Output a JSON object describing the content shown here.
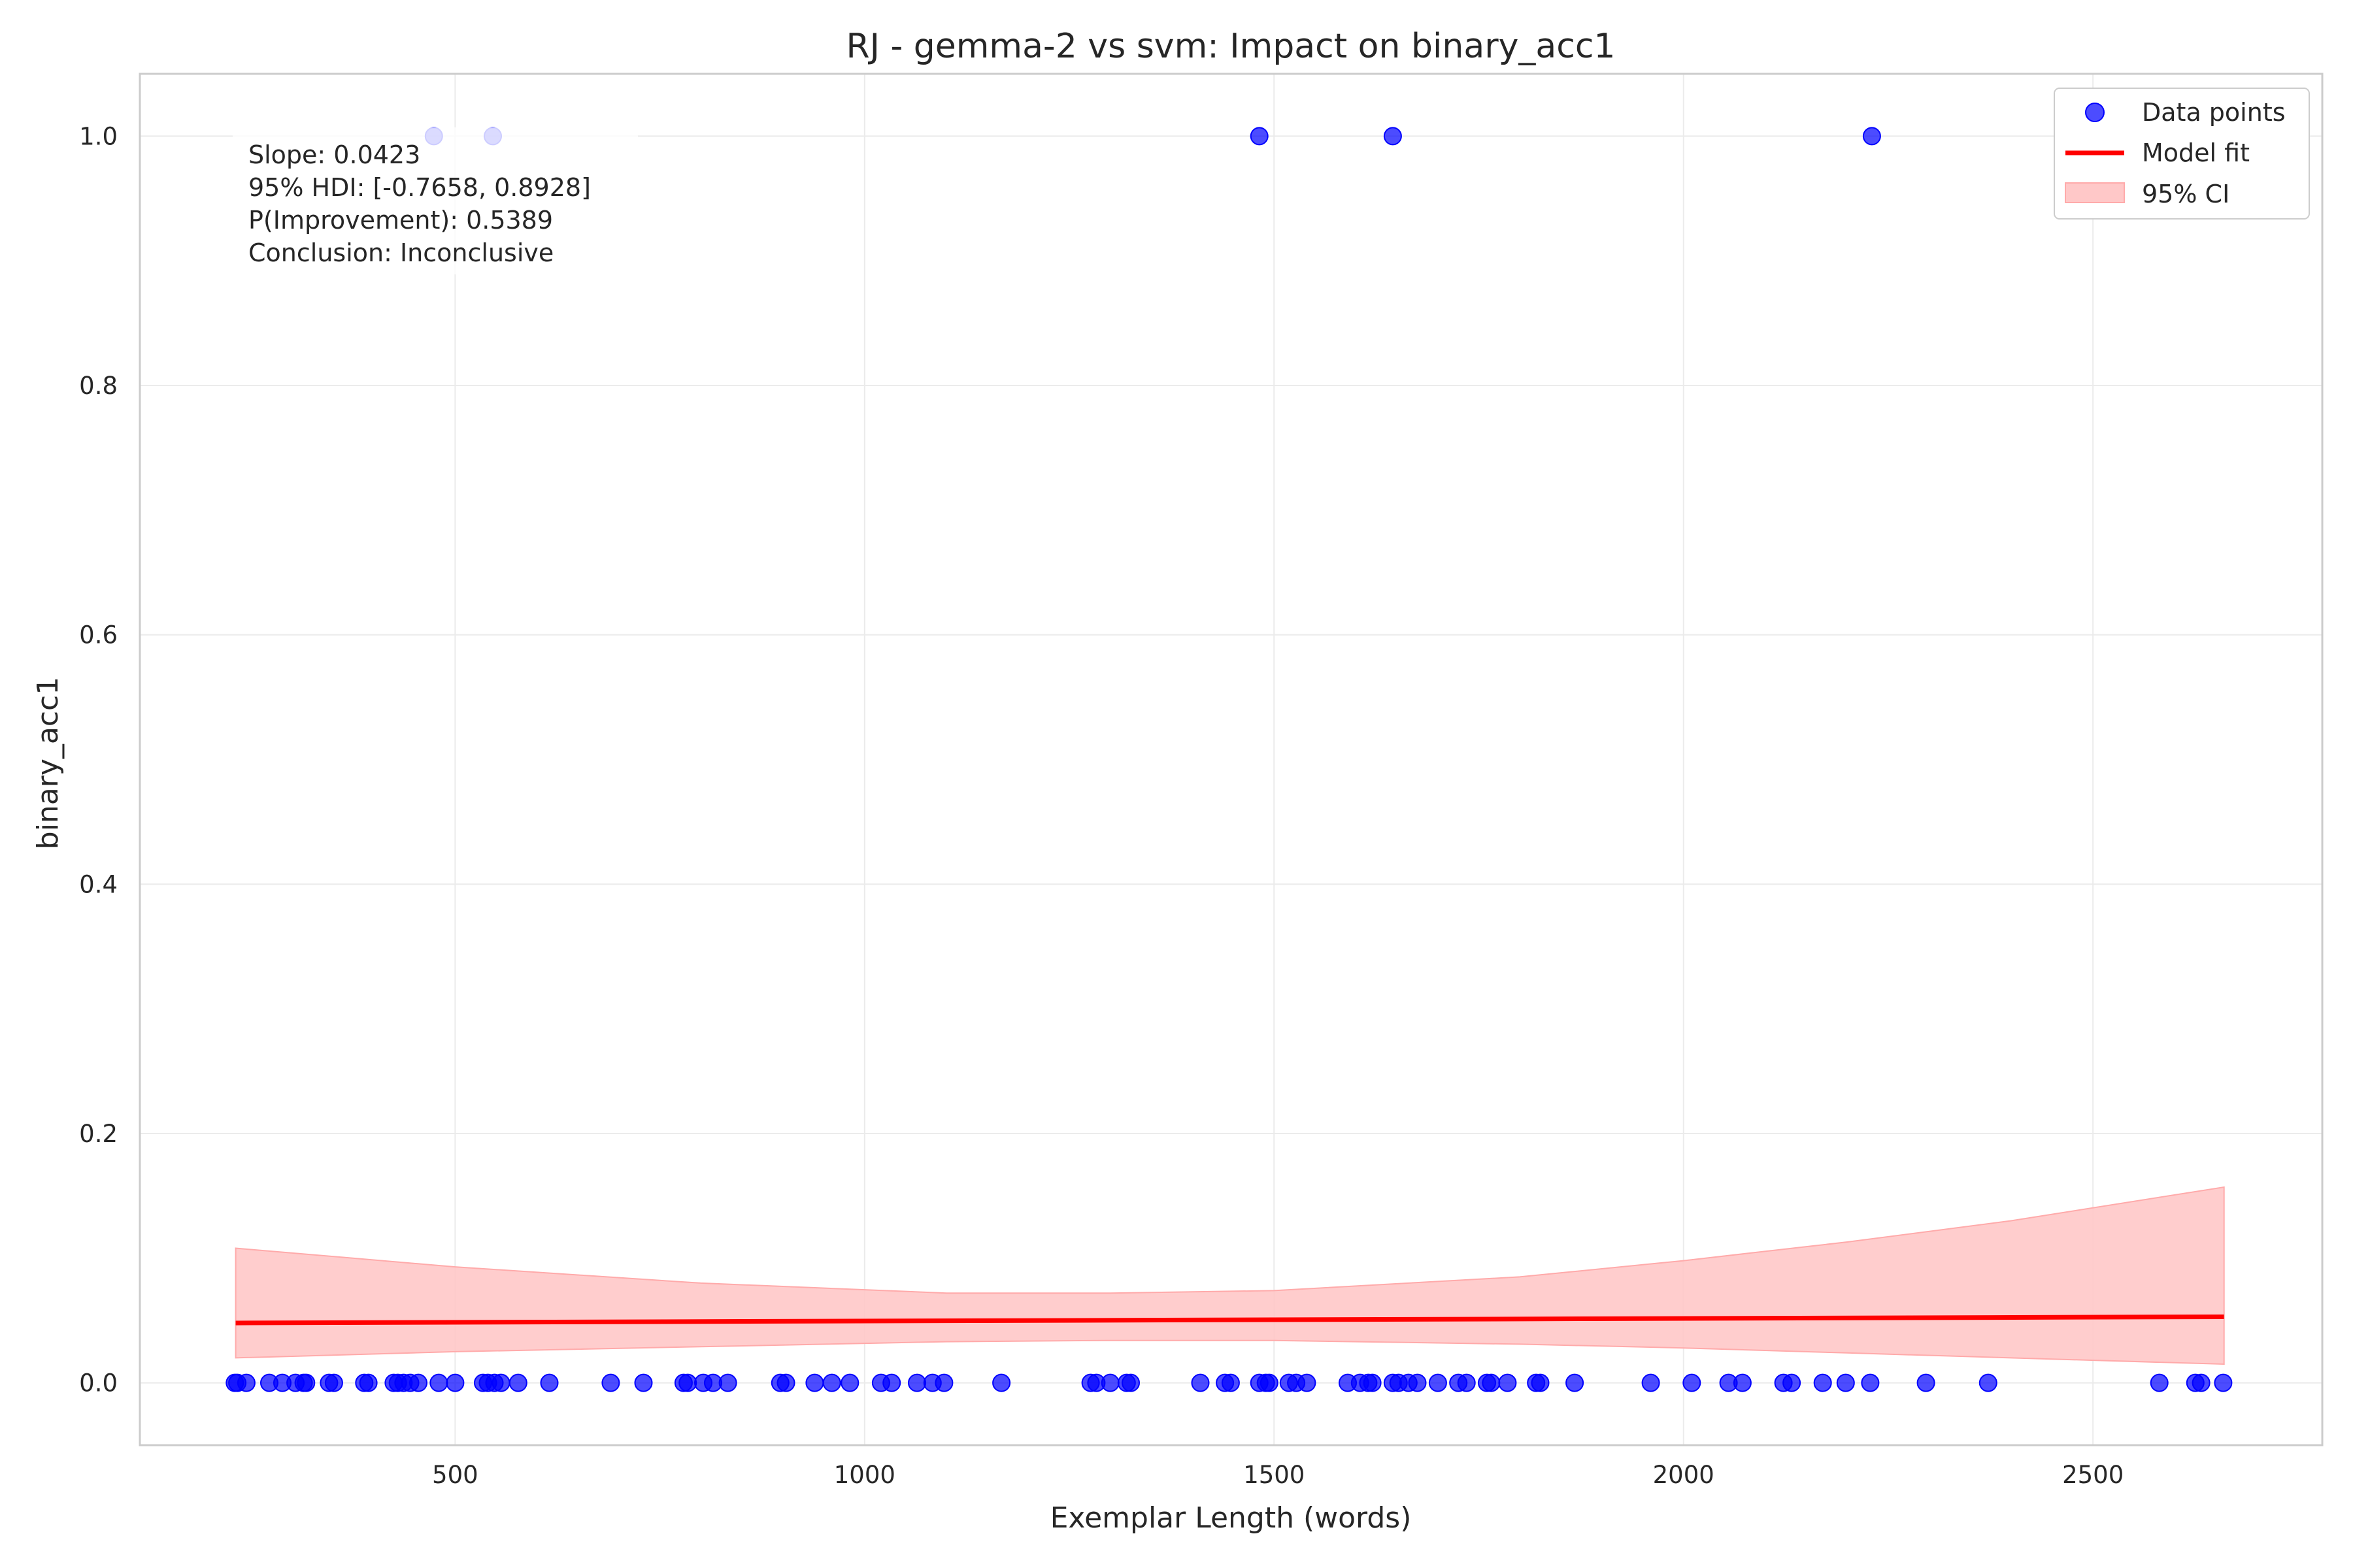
{
  "chart_data": {
    "type": "scatter",
    "title": "RJ - gemma-2 vs svm: Impact on binary_acc1",
    "xlabel": "Exemplar Length (words)",
    "ylabel": "binary_acc1",
    "xlim": [
      115,
      2780
    ],
    "ylim": [
      -0.05,
      1.05
    ],
    "xticks": [
      "500",
      "1000",
      "1500",
      "2000",
      "2500"
    ],
    "xtick_values": [
      500,
      1000,
      1500,
      2000,
      2500
    ],
    "yticks": [
      "0.0",
      "0.2",
      "0.4",
      "0.6",
      "0.8",
      "1.0"
    ],
    "ytick_values": [
      0.0,
      0.2,
      0.4,
      0.6,
      0.8,
      1.0
    ],
    "grid": true,
    "legend_position": "top-right",
    "legend": [
      "Data points",
      "Model fit",
      "95% CI"
    ],
    "colors": {
      "points": "#0000ff",
      "fit": "#ff0000",
      "ci_fill": "#ffc8c8",
      "ci_edge": "#ffaaaa",
      "grid": "#ebebeb",
      "spine": "#cccccc"
    },
    "series": [
      {
        "name": "Data points",
        "type": "scatter",
        "x": [
          474,
          546,
          1482,
          1645,
          2230,
          231,
          234,
          245,
          273,
          289,
          305,
          315,
          318,
          346,
          352,
          389,
          394,
          425,
          430,
          437,
          445,
          455,
          480,
          500,
          534,
          540,
          548,
          556,
          577,
          615,
          690,
          730,
          779,
          784,
          803,
          815,
          833,
          897,
          904,
          939,
          960,
          982,
          1020,
          1033,
          1064,
          1083,
          1097,
          1167,
          1276,
          1283,
          1300,
          1320,
          1325,
          1410,
          1440,
          1447,
          1482,
          1490,
          1494,
          1518,
          1527,
          1540,
          1590,
          1605,
          1615,
          1620,
          1645,
          1652,
          1664,
          1675,
          1700,
          1725,
          1735,
          1760,
          1765,
          1785,
          1820,
          1825,
          1867,
          1960,
          2010,
          2055,
          2072,
          2122,
          2132,
          2170,
          2198,
          2228,
          2296,
          2372,
          2581,
          2625,
          2632,
          2659
        ],
        "y": [
          1,
          1,
          1,
          1,
          1,
          0,
          0,
          0,
          0,
          0,
          0,
          0,
          0,
          0,
          0,
          0,
          0,
          0,
          0,
          0,
          0,
          0,
          0,
          0,
          0,
          0,
          0,
          0,
          0,
          0,
          0,
          0,
          0,
          0,
          0,
          0,
          0,
          0,
          0,
          0,
          0,
          0,
          0,
          0,
          0,
          0,
          0,
          0,
          0,
          0,
          0,
          0,
          0,
          0,
          0,
          0,
          0,
          0,
          0,
          0,
          0,
          0,
          0,
          0,
          0,
          0,
          0,
          0,
          0,
          0,
          0,
          0,
          0,
          0,
          0,
          0,
          0,
          0,
          0,
          0,
          0,
          0,
          0,
          0,
          0,
          0,
          0,
          0,
          0,
          0,
          0,
          0,
          0,
          0
        ]
      },
      {
        "name": "Model fit",
        "type": "line",
        "x": [
          232,
          2660
        ],
        "y": [
          0.048,
          0.053
        ]
      },
      {
        "name": "95% CI",
        "type": "area",
        "x": [
          232,
          500,
          800,
          1100,
          1300,
          1500,
          1800,
          2000,
          2200,
          2400,
          2660
        ],
        "lower": [
          0.02,
          0.025,
          0.029,
          0.033,
          0.034,
          0.034,
          0.031,
          0.028,
          0.024,
          0.02,
          0.015
        ],
        "upper": [
          0.108,
          0.093,
          0.08,
          0.072,
          0.072,
          0.074,
          0.085,
          0.098,
          0.113,
          0.13,
          0.157
        ]
      }
    ],
    "annotation": [
      "Slope: 0.0423",
      "95% HDI: [-0.7658, 0.8928]",
      "P(Improvement): 0.5389",
      "Conclusion: Inconclusive"
    ]
  }
}
